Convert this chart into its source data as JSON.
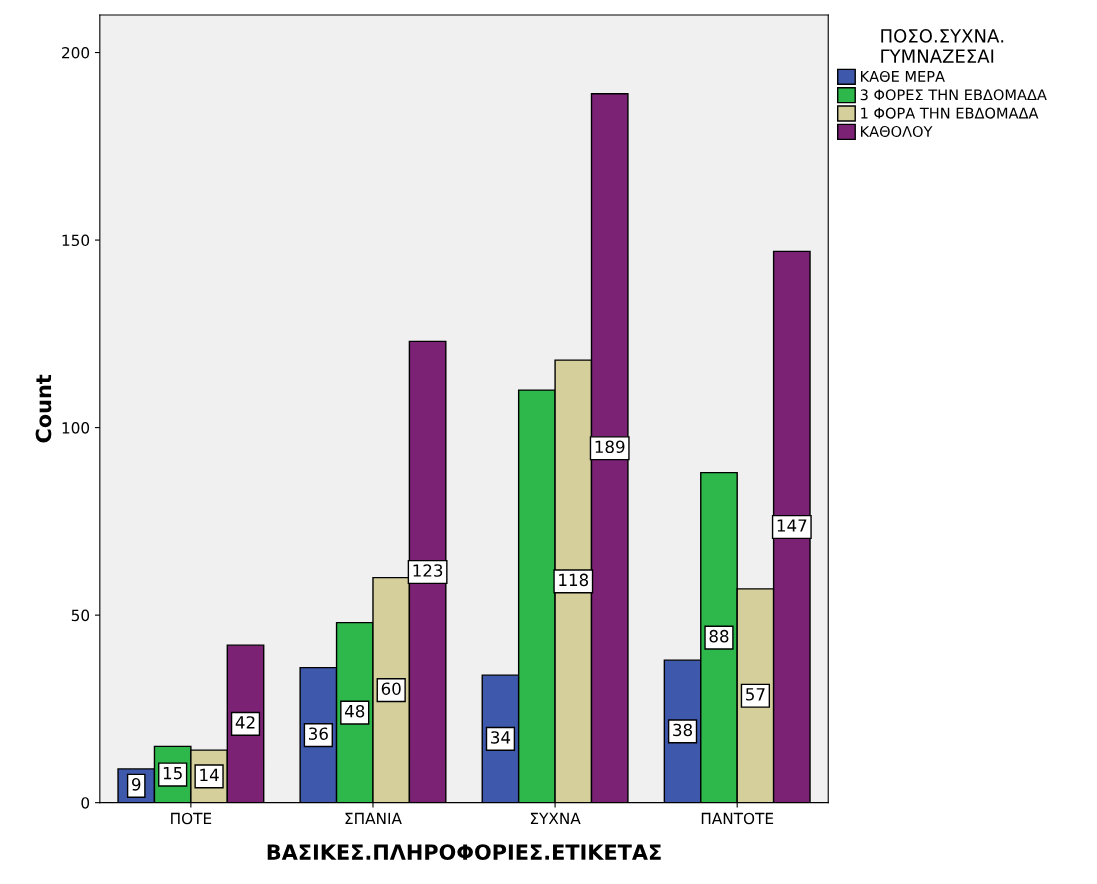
{
  "chart_data": {
    "type": "bar",
    "xlabel": "ΒΑΣΙΚΕΣ.ΠΛΗΡΟΦΟΡΙΕΣ.ΕΤΙΚΕΤΑΣ",
    "ylabel": "Count",
    "legend_title": "ΠΟΣΟ.ΣΥΧΝΑ.\nΓΥΜΝΑΖΕΣΑΙ",
    "categories": [
      "ΠΟΤΕ",
      "ΣΠΑΝΙΑ",
      "ΣΥΧΝΑ",
      "ΠΑΝΤΟΤΕ"
    ],
    "series": [
      {
        "name": "ΚΑΘΕ ΜΕΡΑ",
        "color": "#3e58ac",
        "values": [
          9,
          36,
          34,
          38
        ]
      },
      {
        "name": "3 ΦΟΡΕΣ ΤΗΝ ΕΒΔΟΜΑΔΑ",
        "color": "#2eb84b",
        "values": [
          15,
          48,
          110,
          88
        ]
      },
      {
        "name": "1 ΦΟΡΑ ΤΗΝ ΕΒΔΟΜΑΔΑ",
        "color": "#d4cf9b",
        "values": [
          14,
          60,
          118,
          57
        ]
      },
      {
        "name": "ΚΑΘΟΛΟΥ",
        "color": "#7b2275",
        "values": [
          42,
          123,
          189,
          147
        ]
      }
    ],
    "value_labels": [
      [
        "9",
        "36",
        "34",
        "38"
      ],
      [
        "15",
        "48",
        null,
        "88"
      ],
      [
        "14",
        "60",
        "118",
        "57"
      ],
      [
        "42",
        "123",
        "189",
        "147"
      ]
    ],
    "ylim": [
      0,
      210
    ],
    "yticks": [
      0,
      50,
      100,
      150,
      200
    ],
    "grid": false,
    "legend": "right"
  }
}
